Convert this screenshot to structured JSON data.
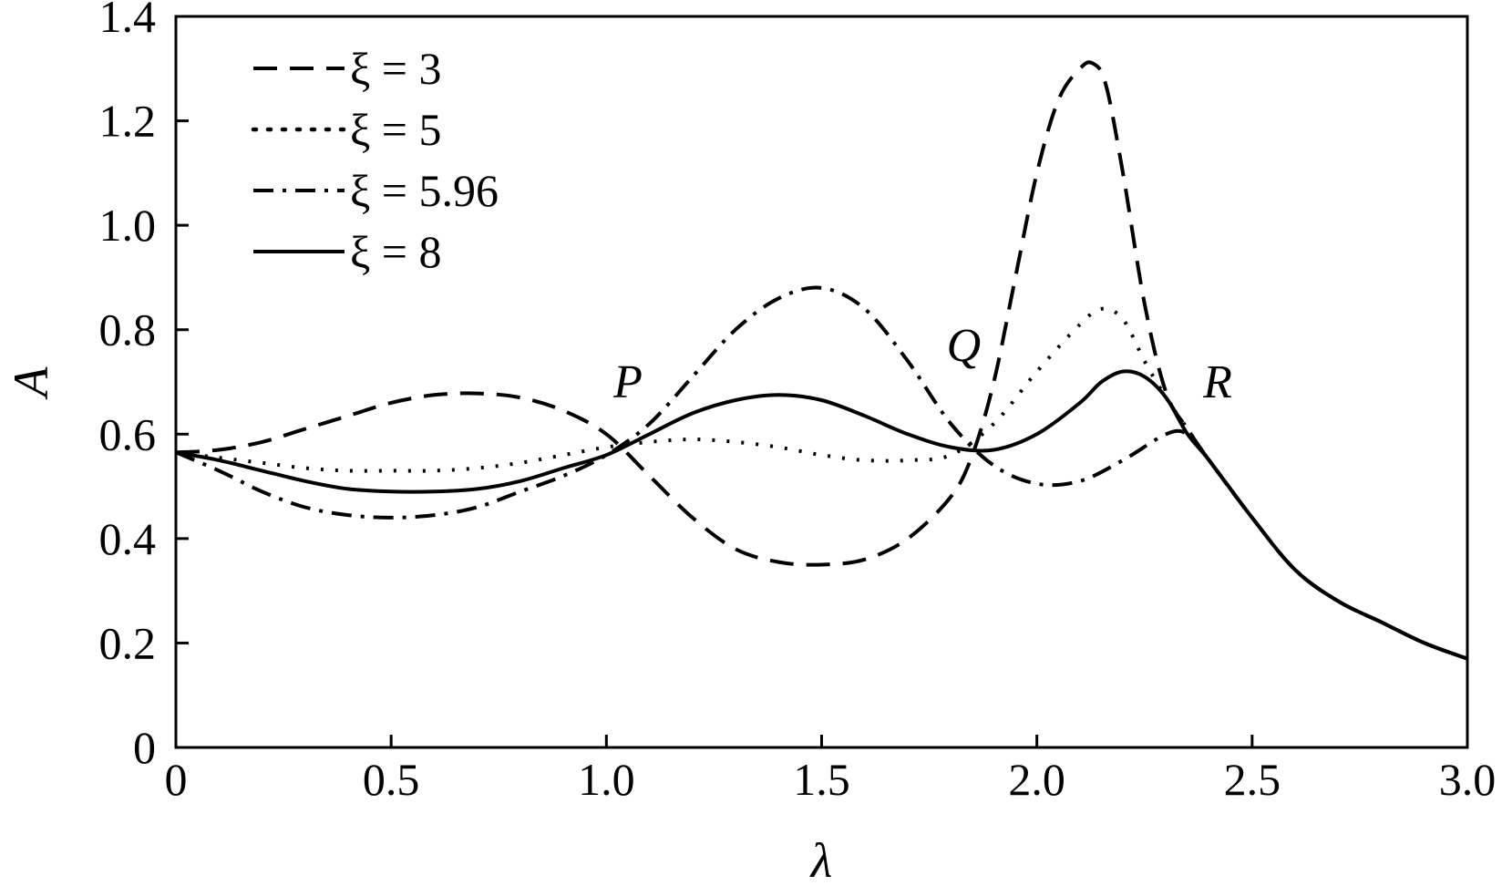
{
  "chart_data": {
    "type": "line",
    "xlabel": "λ",
    "ylabel": "A",
    "xlim": [
      0,
      3.0
    ],
    "ylim": [
      0,
      1.4
    ],
    "x_ticks": [
      0,
      0.5,
      1.0,
      1.5,
      2.0,
      2.5,
      3.0
    ],
    "x_tick_labels": [
      "0",
      "0.5",
      "1.0",
      "1.5",
      "2.0",
      "2.5",
      "3.0"
    ],
    "y_ticks": [
      0,
      0.2,
      0.4,
      0.6,
      0.8,
      1.0,
      1.2,
      1.4
    ],
    "y_tick_labels": [
      "0",
      "0.2",
      "0.4",
      "0.6",
      "0.8",
      "1.0",
      "1.2",
      "1.4"
    ],
    "grid": false,
    "legend_position": "top-left",
    "annotations": [
      {
        "text": "P",
        "x": 1.05,
        "y": 0.67
      },
      {
        "text": "Q",
        "x": 1.83,
        "y": 0.74
      },
      {
        "text": "R",
        "x": 2.42,
        "y": 0.67
      }
    ],
    "series": [
      {
        "name": "ξ = 3",
        "style": "dashed",
        "x": [
          0,
          0.1,
          0.2,
          0.3,
          0.4,
          0.5,
          0.6,
          0.7,
          0.8,
          0.9,
          1.0,
          1.1,
          1.2,
          1.3,
          1.4,
          1.5,
          1.6,
          1.7,
          1.8,
          1.85,
          1.9,
          1.95,
          2.0,
          2.05,
          2.1,
          2.13,
          2.16,
          2.2,
          2.25,
          2.3,
          2.35,
          2.4,
          2.5,
          2.6,
          2.7,
          2.8,
          2.9,
          3.0
        ],
        "values": [
          0.565,
          0.57,
          0.585,
          0.61,
          0.635,
          0.66,
          0.675,
          0.678,
          0.67,
          0.645,
          0.6,
          0.52,
          0.44,
          0.38,
          0.355,
          0.35,
          0.36,
          0.4,
          0.48,
          0.56,
          0.7,
          0.9,
          1.1,
          1.24,
          1.3,
          1.31,
          1.27,
          1.1,
          0.85,
          0.68,
          0.61,
          0.55,
          0.44,
          0.34,
          0.28,
          0.24,
          0.2,
          0.17
        ]
      },
      {
        "name": "ξ = 5",
        "style": "dotted",
        "x": [
          0,
          0.1,
          0.2,
          0.3,
          0.4,
          0.5,
          0.6,
          0.7,
          0.8,
          0.9,
          1.0,
          1.1,
          1.2,
          1.3,
          1.4,
          1.5,
          1.6,
          1.7,
          1.8,
          1.9,
          2.0,
          2.1,
          2.15,
          2.2,
          2.25,
          2.3,
          2.35,
          2.4,
          2.5,
          2.6,
          2.7,
          2.8,
          2.9,
          3.0
        ],
        "values": [
          0.565,
          0.555,
          0.545,
          0.535,
          0.53,
          0.53,
          0.53,
          0.535,
          0.545,
          0.56,
          0.575,
          0.585,
          0.59,
          0.585,
          0.575,
          0.56,
          0.55,
          0.55,
          0.56,
          0.62,
          0.72,
          0.81,
          0.84,
          0.82,
          0.74,
          0.67,
          0.61,
          0.55,
          0.44,
          0.34,
          0.28,
          0.24,
          0.2,
          0.17
        ]
      },
      {
        "name": "ξ = 5.96",
        "style": "dash-dot",
        "x": [
          0,
          0.1,
          0.2,
          0.3,
          0.4,
          0.5,
          0.6,
          0.7,
          0.8,
          0.9,
          1.0,
          1.1,
          1.2,
          1.3,
          1.4,
          1.5,
          1.6,
          1.7,
          1.8,
          1.9,
          2.0,
          2.1,
          2.2,
          2.3,
          2.35,
          2.4,
          2.5,
          2.6,
          2.7,
          2.8,
          2.9,
          3.0
        ],
        "values": [
          0.565,
          0.53,
          0.49,
          0.46,
          0.445,
          0.44,
          0.445,
          0.46,
          0.49,
          0.52,
          0.56,
          0.62,
          0.71,
          0.8,
          0.86,
          0.88,
          0.84,
          0.74,
          0.62,
          0.54,
          0.505,
          0.51,
          0.55,
          0.6,
          0.6,
          0.55,
          0.44,
          0.34,
          0.28,
          0.24,
          0.2,
          0.17
        ]
      },
      {
        "name": "ξ = 8",
        "style": "solid",
        "x": [
          0,
          0.1,
          0.2,
          0.3,
          0.4,
          0.5,
          0.6,
          0.7,
          0.8,
          0.9,
          1.0,
          1.1,
          1.2,
          1.3,
          1.4,
          1.5,
          1.6,
          1.7,
          1.8,
          1.9,
          2.0,
          2.1,
          2.15,
          2.2,
          2.25,
          2.3,
          2.35,
          2.4,
          2.5,
          2.6,
          2.7,
          2.8,
          2.9,
          3.0
        ],
        "values": [
          0.565,
          0.55,
          0.53,
          0.51,
          0.495,
          0.49,
          0.49,
          0.495,
          0.51,
          0.535,
          0.56,
          0.6,
          0.64,
          0.665,
          0.675,
          0.665,
          0.635,
          0.6,
          0.575,
          0.57,
          0.6,
          0.66,
          0.7,
          0.72,
          0.71,
          0.67,
          0.6,
          0.55,
          0.44,
          0.34,
          0.28,
          0.24,
          0.2,
          0.17
        ]
      }
    ]
  }
}
